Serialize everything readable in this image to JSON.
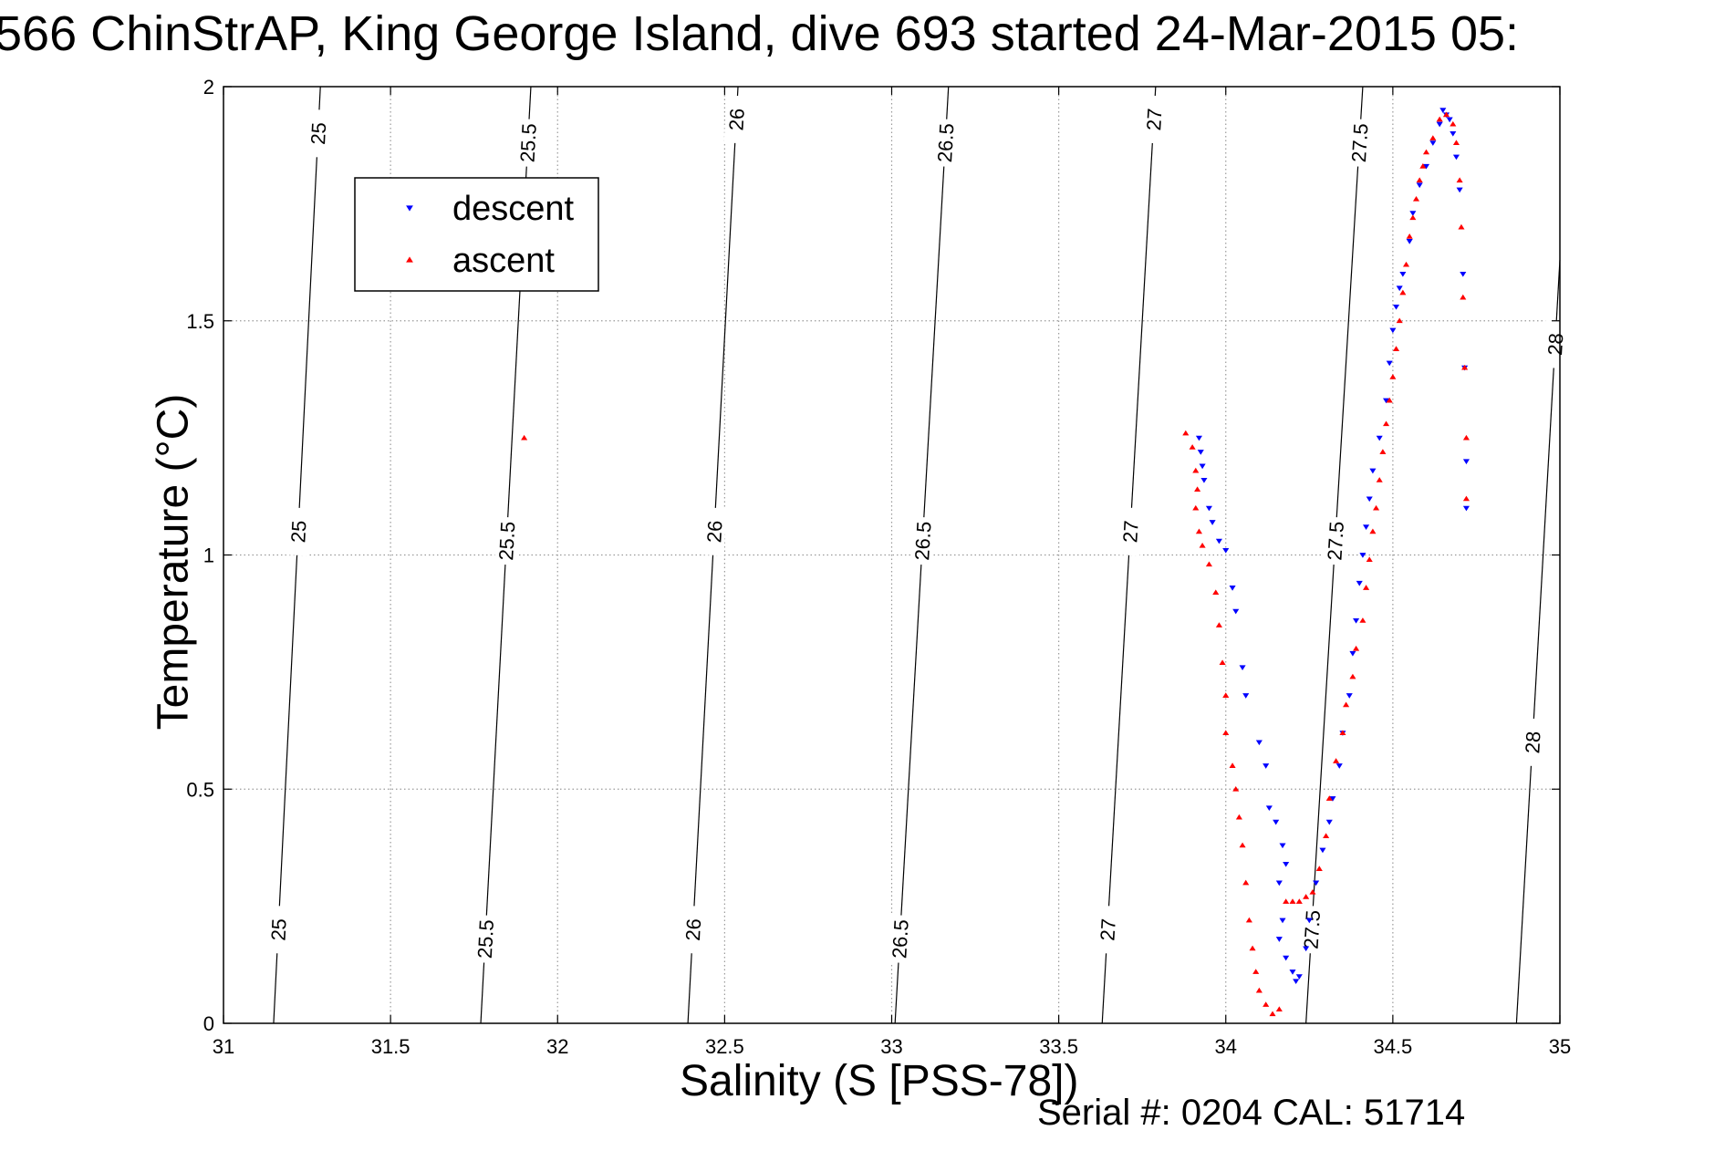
{
  "chart_data": {
    "type": "scatter",
    "title": "566 ChinStrAP, King George Island, dive 693 started 24-Mar-2015 05:",
    "xlabel": "Salinity (S [PSS-78])",
    "ylabel": "Temperature (°C)",
    "xlim": [
      31,
      35
    ],
    "ylim": [
      0,
      2
    ],
    "x_ticks": [
      "31",
      "31.5",
      "32",
      "32.5",
      "33",
      "33.5",
      "34",
      "34.5",
      "35"
    ],
    "y_ticks": [
      "0",
      "0.5",
      "1",
      "1.5",
      "2"
    ],
    "grid": true,
    "legend_position": "top-left",
    "footer": "Serial #: 0204  CAL: 51714",
    "density_contours": [
      {
        "label": "25",
        "points": [
          [
            31.15,
            0
          ],
          [
            31.29,
            2
          ]
        ],
        "label_temps": [
          0.2,
          1.05,
          1.9
        ]
      },
      {
        "label": "25.5",
        "points": [
          [
            31.77,
            0
          ],
          [
            31.92,
            2
          ]
        ],
        "label_temps": [
          0.18,
          1.03,
          1.88
        ]
      },
      {
        "label": "26",
        "points": [
          [
            32.39,
            0
          ],
          [
            32.54,
            2
          ]
        ],
        "label_temps": [
          0.2,
          1.05,
          1.93
        ]
      },
      {
        "label": "26.5",
        "points": [
          [
            33.01,
            0
          ],
          [
            33.17,
            2
          ]
        ],
        "label_temps": [
          0.18,
          1.03,
          1.88
        ]
      },
      {
        "label": "27",
        "points": [
          [
            33.63,
            0
          ],
          [
            33.79,
            2
          ]
        ],
        "label_temps": [
          0.2,
          1.05,
          1.93
        ]
      },
      {
        "label": "27.5",
        "points": [
          [
            34.24,
            0
          ],
          [
            34.41,
            2
          ]
        ],
        "label_temps": [
          0.2,
          1.03,
          1.88
        ]
      },
      {
        "label": "28",
        "points": [
          [
            34.87,
            0
          ],
          [
            35,
            1.63
          ]
        ],
        "label_temps": [
          0.6,
          1.45
        ]
      }
    ],
    "series": [
      {
        "name": "descent",
        "color": "#0000ff",
        "marker": "triangle-down",
        "points": [
          [
            33.92,
            1.25
          ],
          [
            33.925,
            1.22
          ],
          [
            33.93,
            1.19
          ],
          [
            33.935,
            1.16
          ],
          [
            33.95,
            1.1
          ],
          [
            33.96,
            1.07
          ],
          [
            33.98,
            1.03
          ],
          [
            34.0,
            1.01
          ],
          [
            34.02,
            0.93
          ],
          [
            34.03,
            0.88
          ],
          [
            34.05,
            0.76
          ],
          [
            34.06,
            0.7
          ],
          [
            34.1,
            0.6
          ],
          [
            34.12,
            0.55
          ],
          [
            34.13,
            0.46
          ],
          [
            34.15,
            0.43
          ],
          [
            34.17,
            0.38
          ],
          [
            34.18,
            0.34
          ],
          [
            34.16,
            0.3
          ],
          [
            34.17,
            0.22
          ],
          [
            34.16,
            0.18
          ],
          [
            34.18,
            0.14
          ],
          [
            34.2,
            0.11
          ],
          [
            34.21,
            0.09
          ],
          [
            34.22,
            0.1
          ],
          [
            34.24,
            0.16
          ],
          [
            34.25,
            0.22
          ],
          [
            34.27,
            0.3
          ],
          [
            34.29,
            0.37
          ],
          [
            34.31,
            0.43
          ],
          [
            34.32,
            0.48
          ],
          [
            34.34,
            0.55
          ],
          [
            34.35,
            0.62
          ],
          [
            34.37,
            0.7
          ],
          [
            34.38,
            0.79
          ],
          [
            34.39,
            0.86
          ],
          [
            34.4,
            0.94
          ],
          [
            34.41,
            1.0
          ],
          [
            34.42,
            1.06
          ],
          [
            34.43,
            1.12
          ],
          [
            34.44,
            1.18
          ],
          [
            34.46,
            1.25
          ],
          [
            34.48,
            1.33
          ],
          [
            34.49,
            1.41
          ],
          [
            34.5,
            1.48
          ],
          [
            34.51,
            1.53
          ],
          [
            34.52,
            1.57
          ],
          [
            34.53,
            1.6
          ],
          [
            34.55,
            1.67
          ],
          [
            34.56,
            1.73
          ],
          [
            34.58,
            1.79
          ],
          [
            34.6,
            1.83
          ],
          [
            34.62,
            1.88
          ],
          [
            34.64,
            1.92
          ],
          [
            34.65,
            1.95
          ],
          [
            34.66,
            1.94
          ],
          [
            34.67,
            1.93
          ],
          [
            34.68,
            1.9
          ],
          [
            34.69,
            1.85
          ],
          [
            34.7,
            1.78
          ],
          [
            34.71,
            1.6
          ],
          [
            34.715,
            1.4
          ],
          [
            34.72,
            1.2
          ],
          [
            34.72,
            1.1
          ]
        ]
      },
      {
        "name": "ascent",
        "color": "#ff0000",
        "marker": "triangle-up",
        "points": [
          [
            31.9,
            1.25
          ],
          [
            33.88,
            1.26
          ],
          [
            33.9,
            1.23
          ],
          [
            33.91,
            1.18
          ],
          [
            33.915,
            1.14
          ],
          [
            33.91,
            1.1
          ],
          [
            33.92,
            1.05
          ],
          [
            33.93,
            1.02
          ],
          [
            33.95,
            0.98
          ],
          [
            33.97,
            0.92
          ],
          [
            33.98,
            0.85
          ],
          [
            33.99,
            0.77
          ],
          [
            34.0,
            0.7
          ],
          [
            34.0,
            0.62
          ],
          [
            34.02,
            0.55
          ],
          [
            34.03,
            0.5
          ],
          [
            34.04,
            0.44
          ],
          [
            34.05,
            0.38
          ],
          [
            34.06,
            0.3
          ],
          [
            34.07,
            0.22
          ],
          [
            34.08,
            0.16
          ],
          [
            34.09,
            0.11
          ],
          [
            34.1,
            0.07
          ],
          [
            34.12,
            0.04
          ],
          [
            34.14,
            0.02
          ],
          [
            34.16,
            0.03
          ],
          [
            34.18,
            0.26
          ],
          [
            34.2,
            0.26
          ],
          [
            34.22,
            0.26
          ],
          [
            34.24,
            0.27
          ],
          [
            34.26,
            0.28
          ],
          [
            34.28,
            0.33
          ],
          [
            34.3,
            0.4
          ],
          [
            34.31,
            0.48
          ],
          [
            34.33,
            0.56
          ],
          [
            34.35,
            0.62
          ],
          [
            34.36,
            0.68
          ],
          [
            34.38,
            0.74
          ],
          [
            34.39,
            0.8
          ],
          [
            34.41,
            0.86
          ],
          [
            34.42,
            0.93
          ],
          [
            34.43,
            0.99
          ],
          [
            34.44,
            1.05
          ],
          [
            34.45,
            1.1
          ],
          [
            34.46,
            1.16
          ],
          [
            34.47,
            1.22
          ],
          [
            34.48,
            1.28
          ],
          [
            34.49,
            1.33
          ],
          [
            34.5,
            1.38
          ],
          [
            34.51,
            1.44
          ],
          [
            34.52,
            1.5
          ],
          [
            34.53,
            1.56
          ],
          [
            34.54,
            1.62
          ],
          [
            34.55,
            1.68
          ],
          [
            34.56,
            1.72
          ],
          [
            34.57,
            1.76
          ],
          [
            34.58,
            1.8
          ],
          [
            34.59,
            1.83
          ],
          [
            34.6,
            1.86
          ],
          [
            34.62,
            1.89
          ],
          [
            34.64,
            1.93
          ],
          [
            34.66,
            1.94
          ],
          [
            34.68,
            1.92
          ],
          [
            34.69,
            1.88
          ],
          [
            34.7,
            1.8
          ],
          [
            34.705,
            1.7
          ],
          [
            34.71,
            1.55
          ],
          [
            34.715,
            1.4
          ],
          [
            34.72,
            1.25
          ],
          [
            34.72,
            1.12
          ]
        ]
      }
    ]
  }
}
